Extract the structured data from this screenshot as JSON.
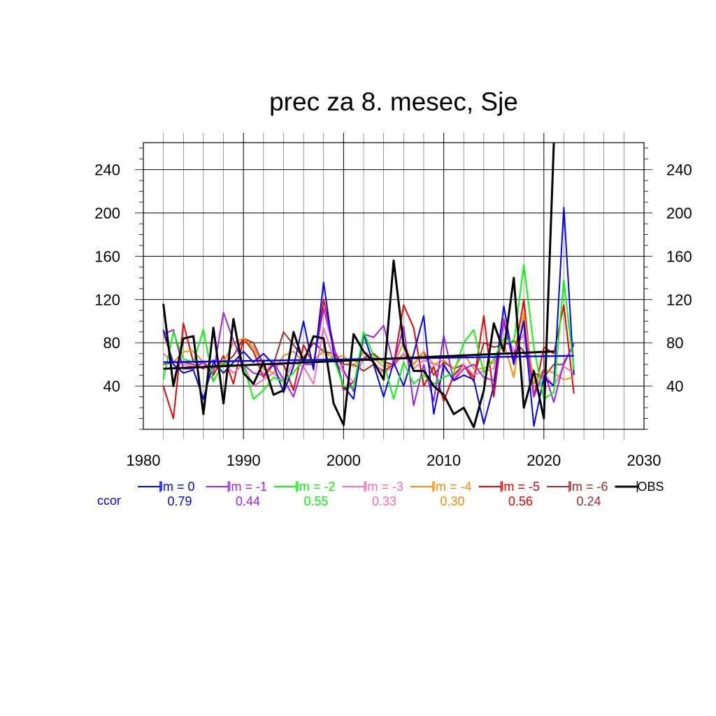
{
  "chart_data": {
    "type": "line",
    "title": "prec za 8. mesec, Sje",
    "xlabel": "",
    "ylabel": "",
    "xlim": [
      1980,
      2030
    ],
    "ylim": [
      0,
      265
    ],
    "x_ticks": [
      "1980",
      "1990",
      "2000",
      "2010",
      "2020",
      "2030"
    ],
    "y_ticks": [
      "40",
      "80",
      "120",
      "160",
      "200",
      "240"
    ],
    "grid": true,
    "x_start": 1982,
    "series": [
      {
        "name": "lm = 0",
        "color": "#0000ff",
        "ccor": "0.79",
        "trend": [
          62,
          68
        ],
        "values": [
          92,
          60,
          52,
          55,
          28,
          62,
          52,
          62,
          72,
          62,
          70,
          60,
          34,
          58,
          100,
          55,
          136,
          70,
          40,
          28,
          88,
          60,
          30,
          62,
          40,
          70,
          105,
          14,
          60,
          45,
          50,
          46,
          5,
          40,
          114,
          60,
          100,
          3,
          48,
          40,
          205,
          50
        ]
      },
      {
        "name": "lm = -1",
        "color": "#a020f0",
        "ccor": "0.44",
        "trend": null,
        "values": [
          88,
          92,
          56,
          56,
          62,
          52,
          108,
          82,
          60,
          52,
          50,
          62,
          46,
          30,
          60,
          60,
          112,
          75,
          55,
          35,
          88,
          85,
          96,
          60,
          95,
          22,
          60,
          26,
          87,
          45,
          56,
          60,
          48,
          45,
          100,
          60,
          100,
          30,
          55,
          25,
          62,
          78
        ]
      },
      {
        "name": "lm = -2",
        "color": "#00ff00",
        "ccor": "0.55",
        "trend": null,
        "values": [
          46,
          90,
          65,
          62,
          92,
          44,
          62,
          58,
          60,
          28,
          36,
          48,
          44,
          52,
          65,
          62,
          64,
          66,
          40,
          38,
          90,
          68,
          62,
          28,
          62,
          42,
          50,
          42,
          48,
          52,
          80,
          92,
          52,
          65,
          84,
          80,
          152,
          76,
          28,
          34,
          138,
          55
        ]
      },
      {
        "name": "lm = -3",
        "color": "#ff69b4",
        "ccor": "0.33",
        "trend": null,
        "values": [
          70,
          62,
          60,
          58,
          62,
          44,
          62,
          52,
          60,
          40,
          46,
          52,
          44,
          62,
          58,
          42,
          94,
          66,
          52,
          44,
          66,
          62,
          52,
          58,
          70,
          56,
          64,
          60,
          58,
          46,
          60,
          50,
          54,
          56,
          96,
          72,
          88,
          30,
          52,
          40,
          58,
          52
        ]
      },
      {
        "name": "lm = -4",
        "color": "#ff8c00",
        "ccor": "0.30",
        "trend": null,
        "values": [
          88,
          62,
          72,
          72,
          62,
          56,
          62,
          80,
          84,
          76,
          56,
          52,
          68,
          72,
          62,
          64,
          72,
          66,
          68,
          58,
          72,
          66,
          58,
          60,
          80,
          60,
          72,
          60,
          64,
          56,
          70,
          56,
          56,
          62,
          80,
          48,
          108,
          42,
          56,
          52,
          46,
          48
        ]
      },
      {
        "name": "lm = -5",
        "color": "#ee0000",
        "ccor": "0.56",
        "trend": null,
        "values": [
          40,
          10,
          98,
          62,
          62,
          50,
          68,
          42,
          84,
          72,
          48,
          60,
          60,
          36,
          78,
          60,
          120,
          78,
          36,
          44,
          66,
          70,
          62,
          60,
          115,
          94,
          40,
          58,
          26,
          50,
          60,
          44,
          105,
          30,
          102,
          64,
          120,
          30,
          76,
          70,
          115,
          33
        ]
      },
      {
        "name": "lm = -6",
        "color": "#a52a2a",
        "ccor": "0.24",
        "trend": null,
        "values": [
          60,
          62,
          62,
          60,
          56,
          64,
          60,
          68,
          84,
          80,
          60,
          60,
          90,
          78,
          66,
          80,
          72,
          70,
          60,
          60,
          54,
          60,
          54,
          60,
          70,
          60,
          72,
          50,
          62,
          56,
          60,
          48,
          80,
          76,
          78,
          82,
          72,
          52,
          48,
          60,
          60,
          80
        ]
      },
      {
        "name": "OBS",
        "color": "#000000",
        "ccor": "",
        "trend": [
          56,
          72
        ],
        "values": [
          116,
          40,
          84,
          86,
          14,
          94,
          24,
          102,
          52,
          42,
          62,
          32,
          36,
          90,
          62,
          86,
          84,
          24,
          4,
          88,
          72,
          62,
          46,
          156,
          78,
          54,
          54,
          40,
          32,
          14,
          20,
          2,
          36,
          98,
          72,
          140,
          20,
          54,
          10,
          265
        ]
      }
    ],
    "ccor_label": "ccor"
  }
}
